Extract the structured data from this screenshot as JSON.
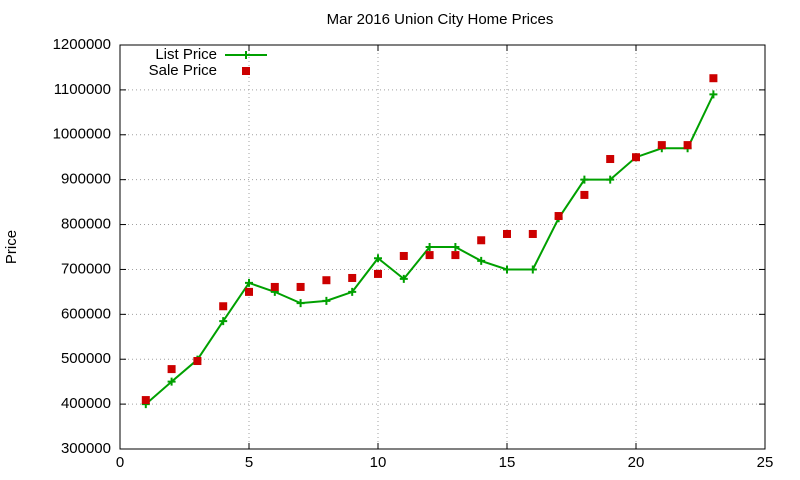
{
  "chart_data": {
    "type": "line",
    "title": "Mar 2016 Union City Home Prices",
    "ylabel": "Price",
    "x": [
      1,
      2,
      3,
      4,
      5,
      6,
      7,
      8,
      9,
      10,
      11,
      12,
      13,
      14,
      15,
      16,
      17,
      18,
      19,
      20,
      21,
      22,
      23
    ],
    "series": [
      {
        "name": "List Price",
        "color": "#00a000",
        "style": "linespoints",
        "values": [
          400000,
          450000,
          499000,
          585000,
          670000,
          650000,
          625000,
          630000,
          650000,
          725000,
          679000,
          750000,
          750000,
          719000,
          700000,
          700000,
          814000,
          900000,
          900000,
          950000,
          970000,
          970000,
          1090000
        ]
      },
      {
        "name": "Sale Price",
        "color": "#cc0000",
        "style": "points",
        "values": [
          409000,
          478000,
          496000,
          618000,
          650000,
          661000,
          661000,
          676000,
          681000,
          690000,
          730000,
          732000,
          732000,
          765000,
          779000,
          779000,
          819000,
          866000,
          946000,
          950000,
          977000,
          977000,
          1126000
        ]
      }
    ],
    "xlim": [
      0,
      25
    ],
    "xticks": [
      0,
      5,
      10,
      15,
      20,
      25
    ],
    "ylim": [
      300000,
      1200000
    ],
    "yticks": [
      300000,
      400000,
      500000,
      600000,
      700000,
      800000,
      900000,
      1000000,
      1100000,
      1200000
    ],
    "grid": true,
    "legend": "top-left"
  }
}
